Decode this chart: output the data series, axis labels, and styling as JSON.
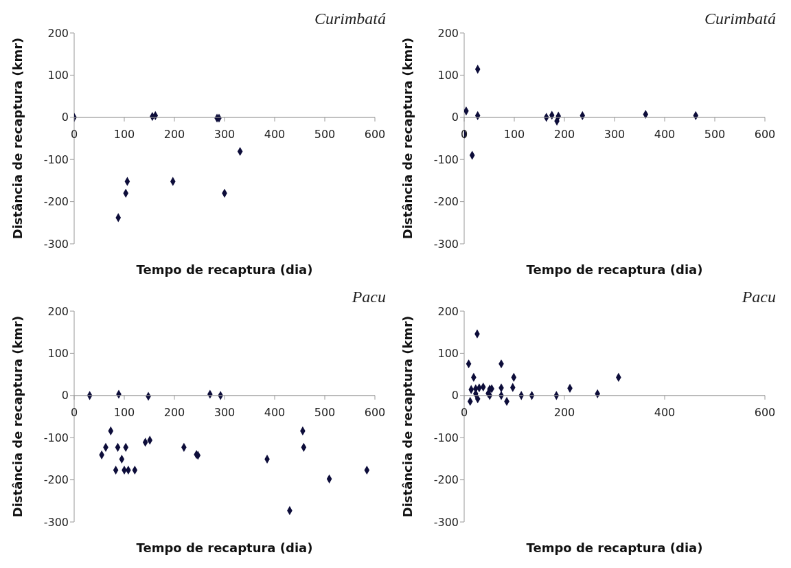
{
  "chart_data": [
    {
      "type": "scatter",
      "title": "Curimbatá",
      "xlabel": "Tempo de recaptura (dia)",
      "ylabel": "Distância de recaptura (kmr)",
      "marker": "diamond",
      "color": "#0d0d3a",
      "xlim": [
        0,
        600
      ],
      "xticks": [
        0,
        100,
        200,
        300,
        400,
        500,
        600
      ],
      "ylim": [
        -300,
        200
      ],
      "yticks": [
        -300,
        -200,
        -100,
        0,
        100,
        200
      ],
      "x": [
        0,
        156,
        162,
        285,
        289,
        331,
        106,
        103,
        88,
        197,
        300
      ],
      "values": [
        0,
        2,
        4,
        -2,
        -2,
        -81,
        -152,
        -180,
        -238,
        -152,
        -180
      ]
    },
    {
      "type": "scatter",
      "title": "Curimbatá",
      "xlabel": "Tempo de recaptura (dia)",
      "ylabel": "Distância de recaptura (kmr)",
      "marker": "diamond",
      "color": "#0d0d3a",
      "xlim": [
        0,
        600
      ],
      "xticks": [
        0,
        100,
        200,
        300,
        400,
        500,
        600
      ],
      "ylim": [
        -300,
        200
      ],
      "yticks": [
        -300,
        -200,
        -100,
        0,
        100,
        200
      ],
      "x": [
        27,
        4,
        27,
        0,
        16,
        164,
        175,
        185,
        188,
        236,
        362,
        462
      ],
      "values": [
        114,
        15,
        4,
        -40,
        -90,
        0,
        5,
        -9,
        3,
        4,
        7,
        4
      ]
    },
    {
      "type": "scatter",
      "title": "Pacu",
      "xlabel": "Tempo de recaptura (dia)",
      "ylabel": "Distância de recaptura (kmr)",
      "marker": "diamond",
      "color": "#0d0d3a",
      "xlim": [
        0,
        600
      ],
      "xticks": [
        0,
        100,
        200,
        300,
        400,
        500,
        600
      ],
      "ylim": [
        -300,
        200
      ],
      "yticks": [
        -300,
        -200,
        -100,
        0,
        100,
        200
      ],
      "x": [
        31,
        89,
        148,
        271,
        292,
        73,
        63,
        55,
        87,
        103,
        95,
        83,
        100,
        108,
        121,
        142,
        151,
        219,
        244,
        247,
        385,
        456,
        458,
        509,
        430,
        584
      ],
      "values": [
        0,
        3,
        -2,
        3,
        0,
        -84,
        -123,
        -141,
        -123,
        -123,
        -151,
        -177,
        -177,
        -177,
        -177,
        -111,
        -106,
        -123,
        -140,
        -142,
        -151,
        -84,
        -123,
        -198,
        -273,
        -177
      ]
    },
    {
      "type": "scatter",
      "title": "Pacu",
      "xlabel": "Tempo de recaptura (dia)",
      "ylabel": "Distância de recaptura (kmr)",
      "marker": "diamond",
      "color": "#0d0d3a",
      "xlim": [
        0,
        600
      ],
      "xticks": [
        0,
        200,
        400,
        600
      ],
      "ylim": [
        -300,
        200
      ],
      "yticks": [
        -300,
        -200,
        -100,
        0,
        100,
        200
      ],
      "x": [
        9,
        26,
        74,
        19,
        99,
        308,
        12,
        14,
        23,
        23,
        27,
        30,
        38,
        48,
        51,
        51,
        55,
        74,
        74,
        85,
        97,
        114,
        135,
        184,
        211,
        266
      ],
      "values": [
        75,
        146,
        75,
        43,
        43,
        43,
        -14,
        14,
        16,
        4,
        -8,
        18,
        20,
        5,
        0,
        15,
        16,
        18,
        0,
        -14,
        19,
        0,
        0,
        0,
        17,
        4
      ]
    }
  ]
}
